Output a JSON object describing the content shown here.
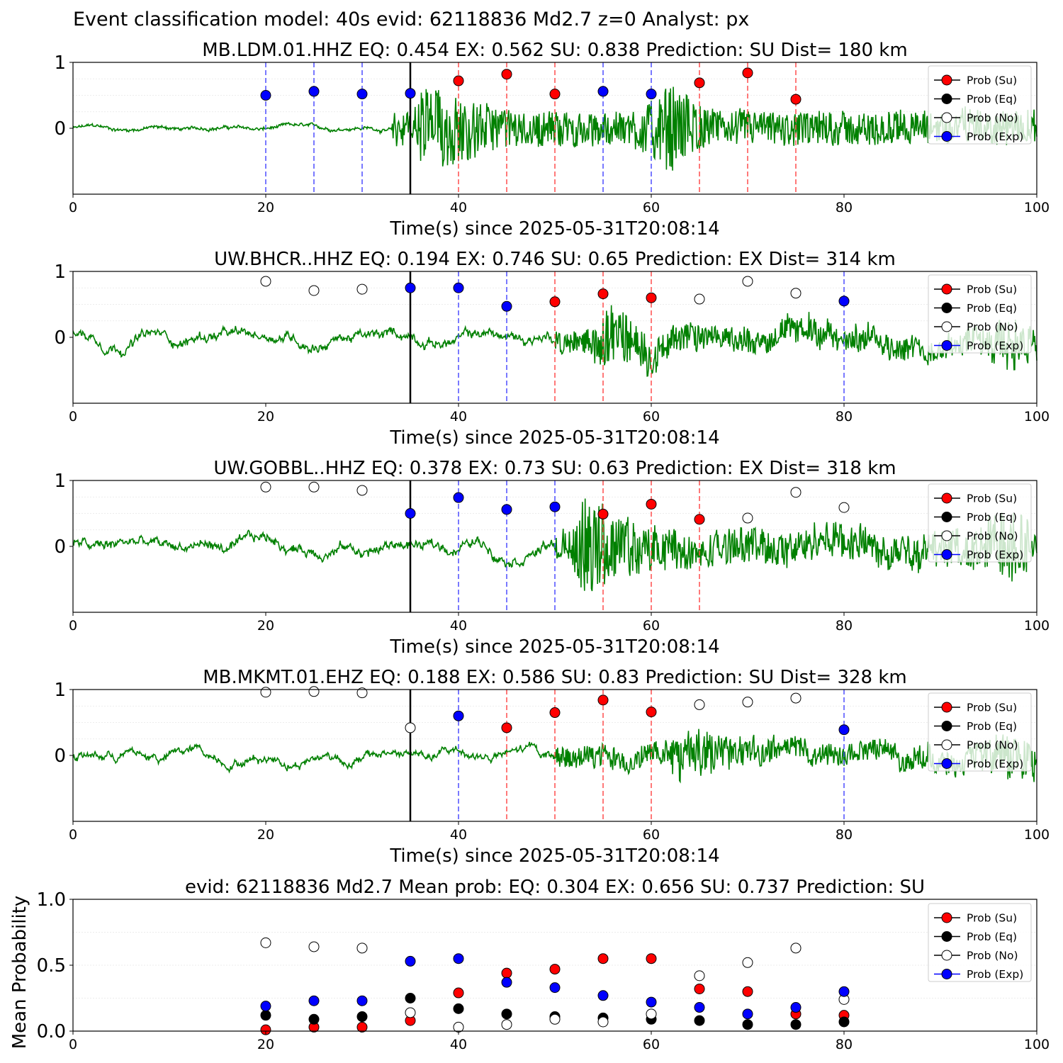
{
  "suptitle": "Event classification model: 40s evid: 62118836 Md2.7 z=0 Analyst: px",
  "legend": [
    "Prob (Su)",
    "Prob (Eq)",
    "Prob (No)",
    "Prob (Exp)"
  ],
  "colors": {
    "su": "#ff0000",
    "eq": "#000000",
    "no": "#ffffff",
    "exp": "#0000ff",
    "trace": "#008000",
    "su_line": "#ff4d4d",
    "exp_line": "#4d4dff"
  },
  "chart_data": [
    {
      "type": "line",
      "title": "MB.LDM.01.HHZ   EQ: 0.454  EX: 0.562  SU: 0.838   Prediction: SU    Dist= 180 km",
      "xlabel": "Time(s) since 2025-05-31T20:08:14",
      "xlim": [
        0,
        100
      ],
      "ylim": [
        -1,
        1
      ],
      "xticks": [
        0,
        20,
        40,
        60,
        80,
        100
      ],
      "yticks": [
        "1",
        "0"
      ],
      "arrival_time": 35,
      "trace": {
        "onset": 33,
        "noise": 0.035,
        "peak": 0.75,
        "peak_time": 36.5,
        "second_peak_time": 62
      },
      "windows": [
        {
          "t": 20,
          "label": "Exp",
          "p": 0.5
        },
        {
          "t": 25,
          "label": "Exp",
          "p": 0.56
        },
        {
          "t": 30,
          "label": "Exp",
          "p": 0.52
        },
        {
          "t": 35,
          "label": "Exp",
          "p": 0.53
        },
        {
          "t": 40,
          "label": "Su",
          "p": 0.72
        },
        {
          "t": 45,
          "label": "Su",
          "p": 0.82
        },
        {
          "t": 50,
          "label": "Su",
          "p": 0.52
        },
        {
          "t": 55,
          "label": "Exp",
          "p": 0.56
        },
        {
          "t": 60,
          "label": "Exp",
          "p": 0.52
        },
        {
          "t": 65,
          "label": "Su",
          "p": 0.69
        },
        {
          "t": 70,
          "label": "Su",
          "p": 0.84
        },
        {
          "t": 75,
          "label": "Su",
          "p": 0.44
        }
      ]
    },
    {
      "type": "line",
      "title": "UW.BHCR..HHZ   EQ: 0.194  EX: 0.746  SU: 0.65   Prediction: EX    Dist= 314 km",
      "xlabel": "Time(s) since 2025-05-31T20:08:14",
      "xlim": [
        0,
        100
      ],
      "ylim": [
        -1,
        1
      ],
      "xticks": [
        0,
        20,
        40,
        60,
        80,
        100
      ],
      "yticks": [
        "1",
        "0"
      ],
      "arrival_time": 35,
      "trace": {
        "onset": 50,
        "noise": 0.07,
        "peak": 0.5,
        "peak_time": 55,
        "second_peak_time": 97
      },
      "windows": [
        {
          "t": 20,
          "label": "No",
          "p": 0.85
        },
        {
          "t": 25,
          "label": "No",
          "p": 0.71
        },
        {
          "t": 30,
          "label": "No",
          "p": 0.73
        },
        {
          "t": 35,
          "label": "Exp",
          "p": 0.75
        },
        {
          "t": 40,
          "label": "Exp",
          "p": 0.75
        },
        {
          "t": 45,
          "label": "Exp",
          "p": 0.47
        },
        {
          "t": 50,
          "label": "Su",
          "p": 0.54
        },
        {
          "t": 55,
          "label": "Su",
          "p": 0.66
        },
        {
          "t": 60,
          "label": "Su",
          "p": 0.6
        },
        {
          "t": 65,
          "label": "No",
          "p": 0.58
        },
        {
          "t": 70,
          "label": "No",
          "p": 0.85
        },
        {
          "t": 75,
          "label": "No",
          "p": 0.67
        },
        {
          "t": 80,
          "label": "Exp",
          "p": 0.55
        }
      ]
    },
    {
      "type": "line",
      "title": "UW.GOBBL..HHZ   EQ: 0.378  EX: 0.73  SU: 0.63   Prediction: EX    Dist= 318 km",
      "xlabel": "Time(s) since 2025-05-31T20:08:14",
      "xlim": [
        0,
        100
      ],
      "ylim": [
        -1,
        1
      ],
      "xticks": [
        0,
        20,
        40,
        60,
        80,
        100
      ],
      "yticks": [
        "1",
        "0"
      ],
      "arrival_time": 35,
      "trace": {
        "onset": 50,
        "noise": 0.08,
        "peak": 0.75,
        "peak_time": 53,
        "second_peak_time": 97
      },
      "windows": [
        {
          "t": 20,
          "label": "No",
          "p": 0.9
        },
        {
          "t": 25,
          "label": "No",
          "p": 0.9
        },
        {
          "t": 30,
          "label": "No",
          "p": 0.85
        },
        {
          "t": 35,
          "label": "Exp",
          "p": 0.5
        },
        {
          "t": 40,
          "label": "Exp",
          "p": 0.74
        },
        {
          "t": 45,
          "label": "Exp",
          "p": 0.56
        },
        {
          "t": 50,
          "label": "Exp",
          "p": 0.6
        },
        {
          "t": 55,
          "label": "Su",
          "p": 0.49
        },
        {
          "t": 60,
          "label": "Su",
          "p": 0.64
        },
        {
          "t": 65,
          "label": "Su",
          "p": 0.41
        },
        {
          "t": 70,
          "label": "No",
          "p": 0.43
        },
        {
          "t": 75,
          "label": "No",
          "p": 0.82
        },
        {
          "t": 80,
          "label": "No",
          "p": 0.59
        }
      ]
    },
    {
      "type": "line",
      "title": "MB.MKMT.01.EHZ   EQ: 0.188  EX: 0.586  SU: 0.83   Prediction: SU    Dist= 328 km",
      "xlabel": "Time(s) since 2025-05-31T20:08:14",
      "xlim": [
        0,
        100
      ],
      "ylim": [
        -1,
        1
      ],
      "xticks": [
        0,
        20,
        40,
        60,
        80,
        100
      ],
      "yticks": [
        "1",
        "0"
      ],
      "arrival_time": 35,
      "trace": {
        "onset": 50,
        "noise": 0.05,
        "peak": 0.45,
        "peak_time": 63,
        "second_peak_time": 97
      },
      "windows": [
        {
          "t": 20,
          "label": "No",
          "p": 0.96
        },
        {
          "t": 25,
          "label": "No",
          "p": 0.97
        },
        {
          "t": 30,
          "label": "No",
          "p": 0.95
        },
        {
          "t": 35,
          "label": "No",
          "p": 0.42
        },
        {
          "t": 40,
          "label": "Exp",
          "p": 0.6
        },
        {
          "t": 45,
          "label": "Su",
          "p": 0.42
        },
        {
          "t": 50,
          "label": "Su",
          "p": 0.65
        },
        {
          "t": 55,
          "label": "Su",
          "p": 0.84
        },
        {
          "t": 60,
          "label": "Su",
          "p": 0.66
        },
        {
          "t": 65,
          "label": "No",
          "p": 0.77
        },
        {
          "t": 70,
          "label": "No",
          "p": 0.81
        },
        {
          "t": 75,
          "label": "No",
          "p": 0.87
        },
        {
          "t": 80,
          "label": "Exp",
          "p": 0.39
        }
      ]
    },
    {
      "type": "scatter",
      "title": "evid: 62118836  Md2.7   Mean prob:   EQ: 0.304  EX: 0.656  SU: 0.737   Prediction: SU",
      "ylabel": "Mean Probability",
      "xlim": [
        0,
        100
      ],
      "ylim": [
        0,
        1
      ],
      "xticks": [
        0,
        20,
        40,
        60,
        80,
        100
      ],
      "yticks": [
        0.0,
        0.5,
        1.0
      ],
      "ytick_labels": [
        "0.0",
        "0.5",
        "1.0"
      ],
      "x": [
        20,
        25,
        30,
        35,
        40,
        45,
        50,
        55,
        60,
        65,
        70,
        75,
        80
      ],
      "series": [
        {
          "name": "Prob (Su)",
          "key": "su",
          "values": [
            0.01,
            0.03,
            0.03,
            0.08,
            0.29,
            0.44,
            0.47,
            0.55,
            0.55,
            0.32,
            0.3,
            0.13,
            0.12
          ]
        },
        {
          "name": "Prob (Eq)",
          "key": "eq",
          "values": [
            0.12,
            0.09,
            0.11,
            0.25,
            0.17,
            0.13,
            0.11,
            0.1,
            0.09,
            0.08,
            0.05,
            0.05,
            0.07
          ]
        },
        {
          "name": "Prob (No)",
          "key": "no",
          "values": [
            0.67,
            0.64,
            0.63,
            0.14,
            0.03,
            0.05,
            0.09,
            0.07,
            0.13,
            0.42,
            0.52,
            0.63,
            0.24
          ]
        },
        {
          "name": "Prob (Exp)",
          "key": "exp",
          "values": [
            0.19,
            0.23,
            0.23,
            0.53,
            0.55,
            0.37,
            0.33,
            0.27,
            0.22,
            0.18,
            0.13,
            0.18,
            0.3
          ]
        }
      ]
    }
  ]
}
